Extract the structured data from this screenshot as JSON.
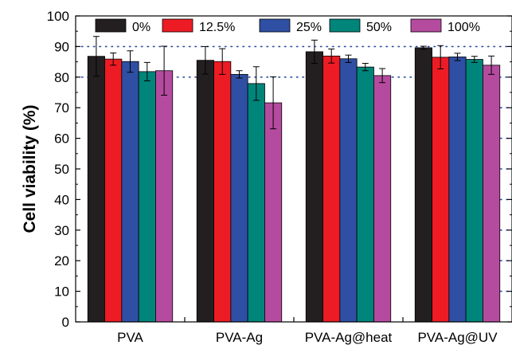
{
  "chart_data": {
    "type": "bar",
    "title": "",
    "xlabel": "",
    "ylabel": "Cell viability (%)",
    "ylim": [
      0,
      100
    ],
    "yticks": [
      0,
      10,
      20,
      30,
      40,
      50,
      60,
      70,
      80,
      90,
      100
    ],
    "grid": "horizontal dotted at 80 and 90",
    "legend_position": "top",
    "categories": [
      "PVA",
      "PVA-Ag",
      "PVA-Ag@heat",
      "PVA-Ag@UV"
    ],
    "series": [
      {
        "name": "0%",
        "color": "#231f20",
        "values": [
          86.8,
          85.5,
          88.3,
          89.6
        ],
        "errors": [
          6.5,
          4.5,
          3.8,
          0.5
        ]
      },
      {
        "name": "12.5%",
        "color": "#ed1c24",
        "values": [
          85.9,
          85.1,
          86.9,
          86.5
        ],
        "errors": [
          2.0,
          4.2,
          2.3,
          3.8
        ]
      },
      {
        "name": "25%",
        "color": "#2e4fa3",
        "values": [
          85.1,
          80.9,
          86.0,
          86.6
        ],
        "errors": [
          3.5,
          1.2,
          1.2,
          1.2
        ]
      },
      {
        "name": "50%",
        "color": "#00857a",
        "values": [
          81.8,
          77.9,
          83.3,
          85.8
        ],
        "errors": [
          3.0,
          5.5,
          1.2,
          1.0
        ]
      },
      {
        "name": "100%",
        "color": "#b54b9f",
        "values": [
          82.1,
          71.6,
          80.5,
          83.9
        ],
        "errors": [
          8.0,
          8.5,
          2.3,
          3.0
        ]
      }
    ]
  }
}
